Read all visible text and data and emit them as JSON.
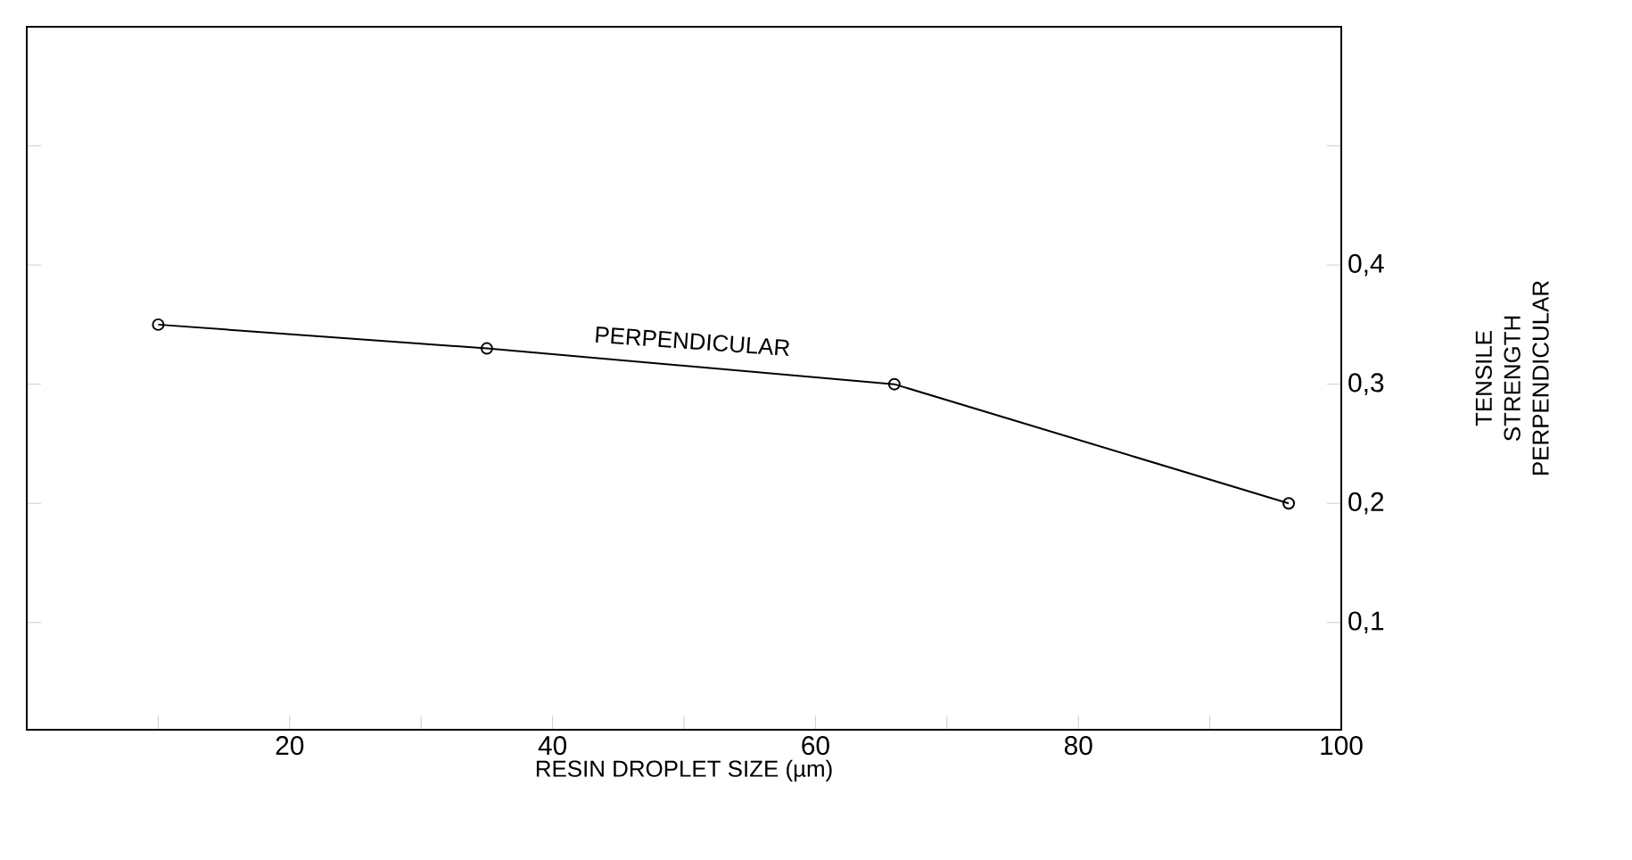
{
  "chart_data": {
    "type": "line",
    "xlabel": "RESIN DROPLET SIZE (µm)",
    "ylabel": "TENSILE STRENGTH PERPENDICULAR",
    "x": [
      10,
      35,
      66,
      96
    ],
    "series": [
      {
        "name": "PERPENDICULAR",
        "color": "#000000",
        "values": [
          0.35,
          0.33,
          0.3,
          0.2
        ]
      }
    ],
    "xlim": [
      0,
      100
    ],
    "xticks": [
      {
        "value": 10,
        "label": null
      },
      20,
      {
        "value": 30,
        "label": null
      },
      40,
      {
        "value": 50,
        "label": null
      },
      60,
      {
        "value": 70,
        "label": null
      },
      80,
      {
        "value": 90,
        "label": null
      },
      100
    ],
    "ylim": [
      0.01,
      0.6
    ],
    "yticks": [
      {
        "value": 0.1,
        "label": "0,1"
      },
      {
        "value": 0.2,
        "label": "0,2"
      },
      {
        "value": 0.3,
        "label": "0,3"
      },
      {
        "value": 0.4,
        "label": "0,4"
      },
      {
        "value": 0.5,
        "label": null
      }
    ],
    "marker": "circle",
    "line_style": "solid"
  }
}
